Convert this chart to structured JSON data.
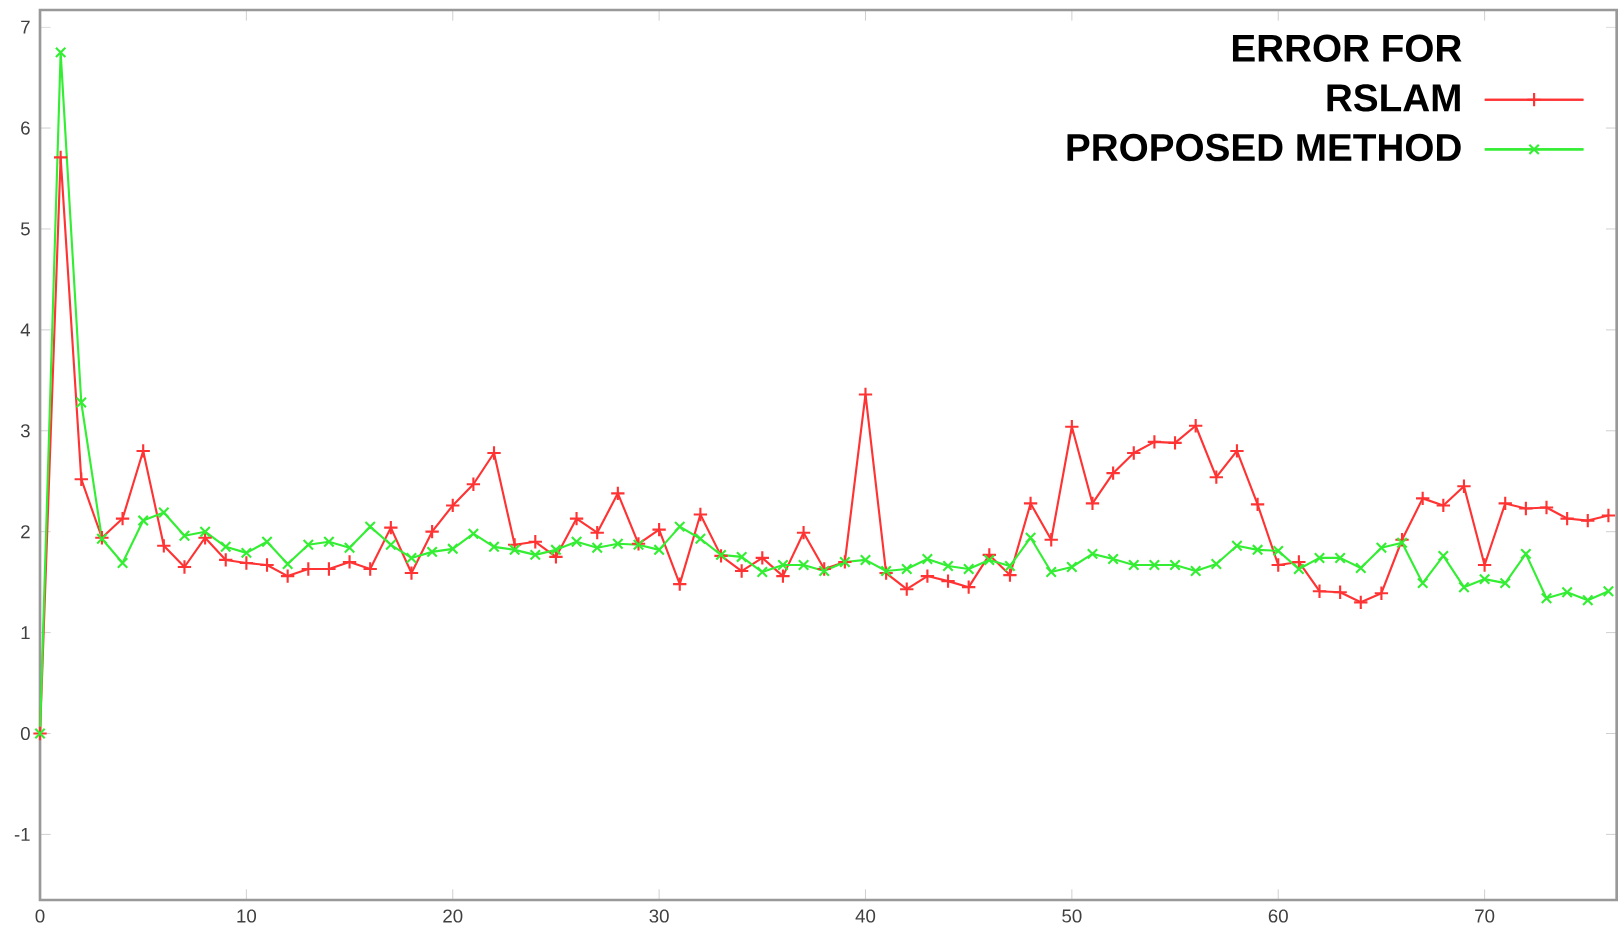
{
  "chart_data": {
    "type": "line",
    "legend_title": "ERROR FOR",
    "xlim": [
      0,
      76.4
    ],
    "ylim": [
      -1.65,
      7.17
    ],
    "xticks": [
      0,
      10,
      20,
      30,
      40,
      50,
      60,
      70
    ],
    "yticks": [
      -1,
      0,
      1,
      2,
      3,
      4,
      5,
      6,
      7
    ],
    "grid": false,
    "legend": "top right",
    "marker": "cross",
    "line_style": "solid",
    "x": [
      0,
      1,
      2,
      3,
      4,
      5,
      6,
      7,
      8,
      9,
      10,
      11,
      12,
      13,
      14,
      15,
      16,
      17,
      18,
      19,
      20,
      21,
      22,
      23,
      24,
      25,
      26,
      27,
      28,
      29,
      30,
      31,
      32,
      33,
      34,
      35,
      36,
      37,
      38,
      39,
      40,
      41,
      42,
      43,
      44,
      45,
      46,
      47,
      48,
      49,
      50,
      51,
      52,
      53,
      54,
      55,
      56,
      57,
      58,
      59,
      60,
      61,
      62,
      63,
      64,
      65,
      66,
      67,
      68,
      69,
      70,
      71,
      72,
      73,
      74,
      75,
      76
    ],
    "series": [
      {
        "name": "RSLAM",
        "color": "#ff3333",
        "values": [
          0,
          5.71,
          2.52,
          1.94,
          2.13,
          2.8,
          1.86,
          1.65,
          1.94,
          1.72,
          1.69,
          1.67,
          1.56,
          1.63,
          1.63,
          1.7,
          1.63,
          2.04,
          1.59,
          2.0,
          2.26,
          2.47,
          2.78,
          1.87,
          1.9,
          1.75,
          2.13,
          1.99,
          2.38,
          1.88,
          2.02,
          1.48,
          2.17,
          1.76,
          1.61,
          1.74,
          1.56,
          1.99,
          1.63,
          1.7,
          3.36,
          1.59,
          1.43,
          1.56,
          1.51,
          1.45,
          1.77,
          1.57,
          2.28,
          1.92,
          3.04,
          2.28,
          2.58,
          2.78,
          2.89,
          2.88,
          3.05,
          2.54,
          2.8,
          2.27,
          1.67,
          1.7,
          1.41,
          1.4,
          1.3,
          1.39,
          1.92,
          2.33,
          2.26,
          2.45,
          1.67,
          2.28,
          2.23,
          2.24,
          2.13,
          2.11,
          2.16
        ]
      },
      {
        "name": "PROPOSED METHOD",
        "color": "#33ee33",
        "values": [
          0,
          6.75,
          3.28,
          1.93,
          1.69,
          2.11,
          2.19,
          1.96,
          2.0,
          1.85,
          1.79,
          1.9,
          1.68,
          1.87,
          1.9,
          1.84,
          2.05,
          1.87,
          1.74,
          1.8,
          1.83,
          1.98,
          1.85,
          1.82,
          1.77,
          1.82,
          1.9,
          1.84,
          1.88,
          1.87,
          1.82,
          2.05,
          1.93,
          1.77,
          1.75,
          1.6,
          1.67,
          1.67,
          1.61,
          1.7,
          1.72,
          1.61,
          1.63,
          1.73,
          1.66,
          1.63,
          1.72,
          1.66,
          1.94,
          1.6,
          1.65,
          1.78,
          1.73,
          1.67,
          1.67,
          1.67,
          1.61,
          1.68,
          1.86,
          1.82,
          1.81,
          1.63,
          1.74,
          1.74,
          1.64,
          1.84,
          1.89,
          1.49,
          1.76,
          1.45,
          1.53,
          1.49,
          1.78,
          1.34,
          1.4,
          1.32,
          1.41
        ]
      }
    ]
  }
}
